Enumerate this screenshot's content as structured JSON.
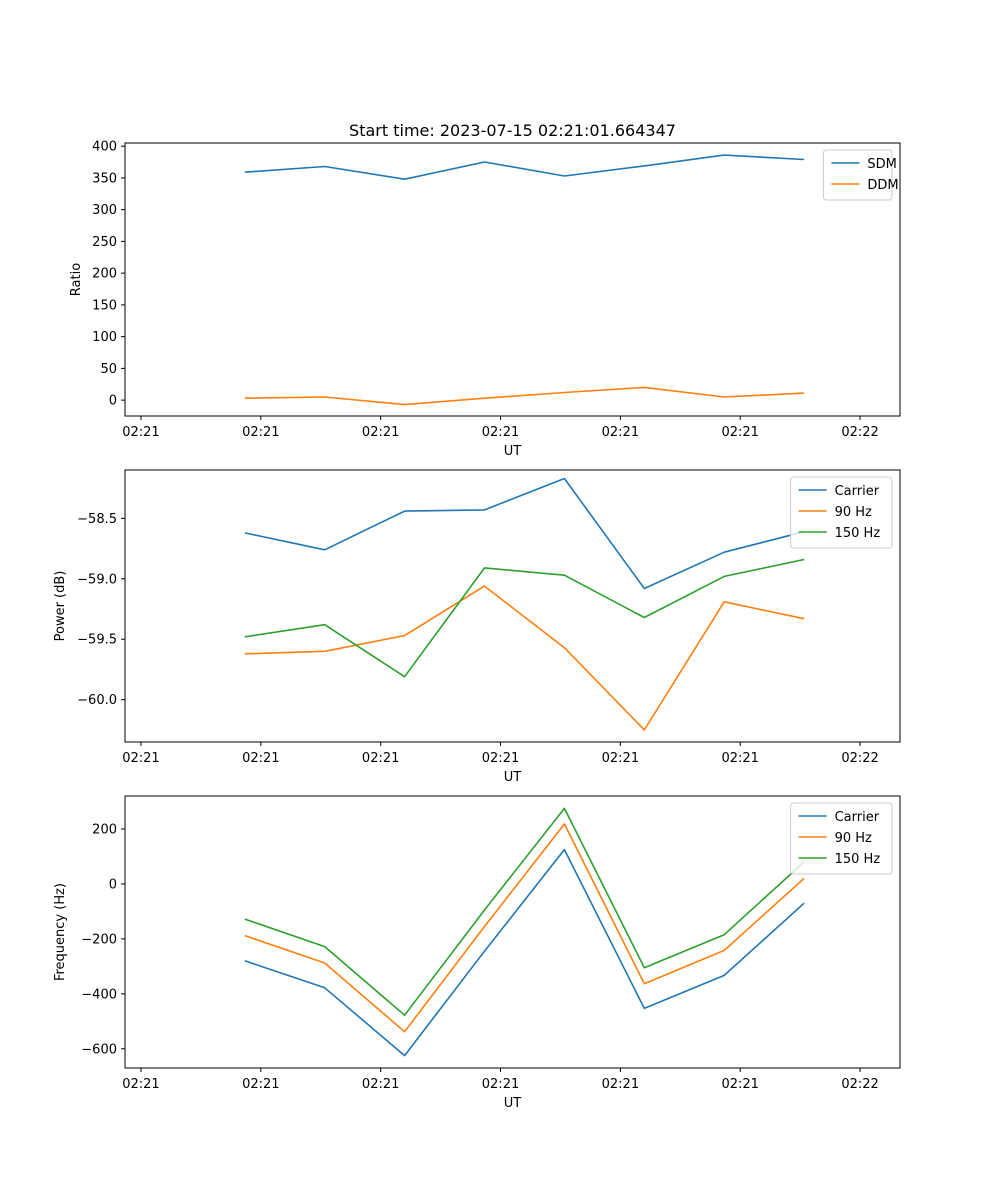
{
  "figure": {
    "title": "Start time: 2023-07-15 02:21:01.664347"
  },
  "colors": {
    "blue": "#1f77b4",
    "orange": "#ff7f0e",
    "green": "#2ca02c"
  },
  "chart_data": [
    {
      "type": "line",
      "title": "Start time: 2023-07-15 02:21:01.664347",
      "xlabel": "UT",
      "ylabel": "Ratio",
      "x": [
        1,
        2,
        3,
        4,
        5,
        6,
        7,
        8
      ],
      "xlim": [
        -0.5,
        9.2
      ],
      "xticks": [
        {
          "value": -0.3,
          "label": "02:21"
        },
        {
          "value": 1.2,
          "label": "02:21"
        },
        {
          "value": 2.7,
          "label": "02:21"
        },
        {
          "value": 4.2,
          "label": "02:21"
        },
        {
          "value": 5.7,
          "label": "02:21"
        },
        {
          "value": 7.2,
          "label": "02:21"
        },
        {
          "value": 8.7,
          "label": "02:22"
        }
      ],
      "ylim": [
        -25,
        405
      ],
      "yticks": [
        0,
        50,
        100,
        150,
        200,
        250,
        300,
        350,
        400
      ],
      "ytick_labels": [
        "0",
        "50",
        "100",
        "150",
        "200",
        "250",
        "300",
        "350",
        "400"
      ],
      "legend_position": "top-right",
      "series": [
        {
          "name": "SDM",
          "color": "#1f77b4",
          "values": [
            359,
            368,
            348,
            375,
            353,
            369,
            386,
            379
          ]
        },
        {
          "name": "DDM",
          "color": "#ff7f0e",
          "values": [
            3,
            5,
            -7,
            3,
            12,
            20,
            5,
            11
          ]
        }
      ]
    },
    {
      "type": "line",
      "xlabel": "UT",
      "ylabel": "Power (dB)",
      "x": [
        1,
        2,
        3,
        4,
        5,
        6,
        7,
        8
      ],
      "xlim": [
        -0.5,
        9.2
      ],
      "xticks": [
        {
          "value": -0.3,
          "label": "02:21"
        },
        {
          "value": 1.2,
          "label": "02:21"
        },
        {
          "value": 2.7,
          "label": "02:21"
        },
        {
          "value": 4.2,
          "label": "02:21"
        },
        {
          "value": 5.7,
          "label": "02:21"
        },
        {
          "value": 7.2,
          "label": "02:21"
        },
        {
          "value": 8.7,
          "label": "02:22"
        }
      ],
      "ylim": [
        -60.35,
        -58.1
      ],
      "yticks": [
        -60.0,
        -59.5,
        -59.0,
        -58.5
      ],
      "ytick_labels": [
        "−60.0",
        "−59.5",
        "−59.0",
        "−58.5"
      ],
      "legend_position": "top-right",
      "series": [
        {
          "name": "Carrier",
          "color": "#1f77b4",
          "values": [
            -58.62,
            -58.76,
            -58.44,
            -58.43,
            -58.17,
            -59.08,
            -58.78,
            -58.61
          ]
        },
        {
          "name": "90 Hz",
          "color": "#ff7f0e",
          "values": [
            -59.62,
            -59.6,
            -59.47,
            -59.06,
            -59.57,
            -60.25,
            -59.19,
            -59.33
          ]
        },
        {
          "name": "150 Hz",
          "color": "#2ca02c",
          "values": [
            -59.48,
            -59.38,
            -59.81,
            -58.91,
            -58.97,
            -59.32,
            -58.98,
            -58.84
          ]
        }
      ]
    },
    {
      "type": "line",
      "xlabel": "UT",
      "ylabel": "Frequency (Hz)",
      "x": [
        1,
        2,
        3,
        4,
        5,
        6,
        7,
        8
      ],
      "xlim": [
        -0.5,
        9.2
      ],
      "xticks": [
        {
          "value": -0.3,
          "label": "02:21"
        },
        {
          "value": 1.2,
          "label": "02:21"
        },
        {
          "value": 2.7,
          "label": "02:21"
        },
        {
          "value": 4.2,
          "label": "02:21"
        },
        {
          "value": 5.7,
          "label": "02:21"
        },
        {
          "value": 7.2,
          "label": "02:21"
        },
        {
          "value": 8.7,
          "label": "02:22"
        }
      ],
      "ylim": [
        -670,
        320
      ],
      "yticks": [
        -600,
        -400,
        -200,
        0,
        200
      ],
      "ytick_labels": [
        "−600",
        "−400",
        "−200",
        "0",
        "200"
      ],
      "legend_position": "top-right",
      "series": [
        {
          "name": "Carrier",
          "color": "#1f77b4",
          "values": [
            -280,
            -378,
            -625,
            -245,
            125,
            -453,
            -333,
            -70
          ]
        },
        {
          "name": "90 Hz",
          "color": "#ff7f0e",
          "values": [
            -188,
            -288,
            -538,
            -155,
            218,
            -363,
            -242,
            20
          ]
        },
        {
          "name": "150 Hz",
          "color": "#2ca02c",
          "values": [
            -128,
            -228,
            -478,
            -95,
            275,
            -305,
            -185,
            80
          ]
        }
      ]
    }
  ]
}
